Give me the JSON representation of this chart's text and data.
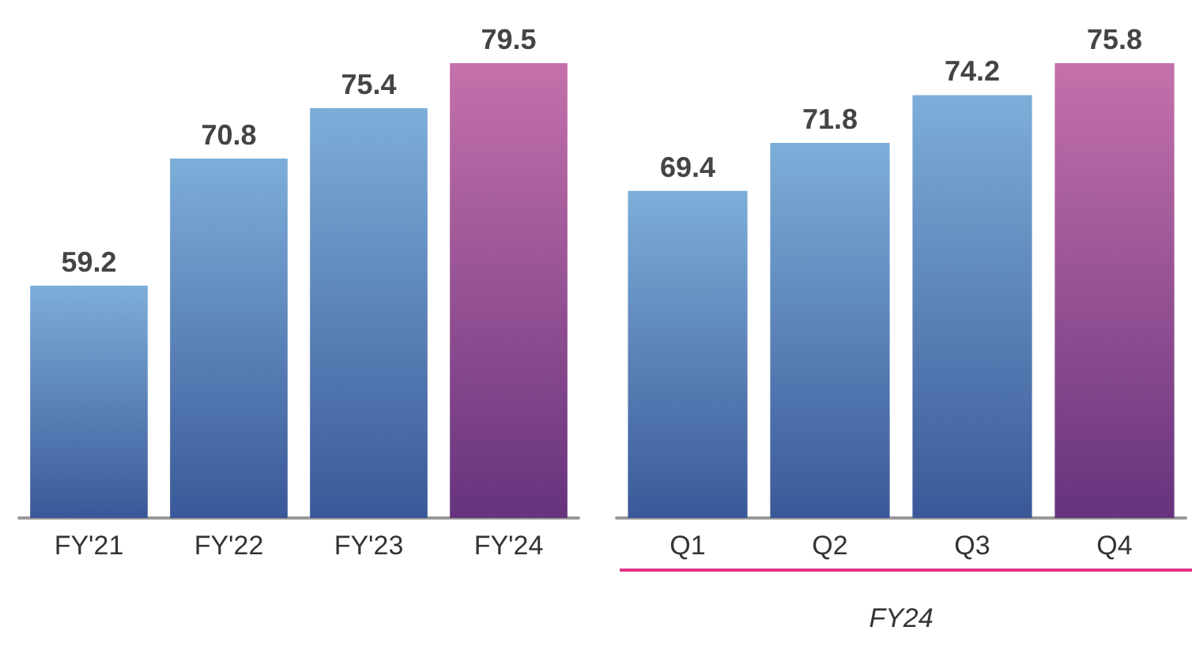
{
  "chart_data": [
    {
      "type": "bar",
      "categories": [
        "FY'21",
        "FY'22",
        "FY'23",
        "FY'24"
      ],
      "values": [
        59.2,
        70.8,
        75.4,
        79.5
      ],
      "colors": [
        "#5193cc",
        "#5193cc",
        "#5193cc",
        "#b2418f"
      ],
      "ylim": [
        38,
        79.5
      ],
      "data_labels": true,
      "tick_labels": "x"
    },
    {
      "type": "bar",
      "categories": [
        "Q1",
        "Q2",
        "Q3",
        "Q4"
      ],
      "values": [
        69.4,
        71.8,
        74.2,
        75.8
      ],
      "colors": [
        "#5193cc",
        "#5193cc",
        "#5193cc",
        "#b2418f"
      ],
      "ylim": [
        53,
        75.8
      ],
      "xlabel": "FY24",
      "data_labels": true,
      "tick_labels": "x"
    }
  ]
}
